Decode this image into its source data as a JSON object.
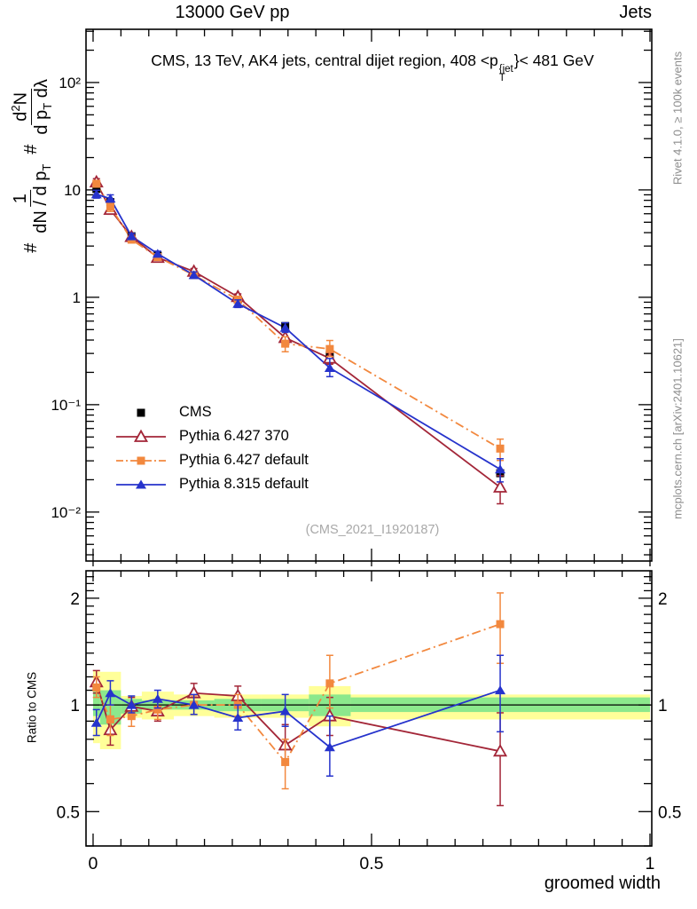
{
  "header": {
    "left": "13000 GeV pp",
    "right": "Jets"
  },
  "title": {
    "pre": "CMS, 13 TeV, AK4 jets, central dijet region, 408 <p",
    "sup": "{jet",
    "sub": "T",
    "post": "}< 481 GeV"
  },
  "ylabel": {
    "hash1": "#",
    "frac1_num": "1",
    "frac1_den_a": "dN / d p",
    "frac1_den_sub": "T",
    "hash2": "#",
    "frac2_num_a": "d",
    "frac2_num_sup": "2",
    "frac2_num_b": "N",
    "frac2_den_a": "d p",
    "frac2_den_sub": "T",
    "frac2_den_b": " dλ"
  },
  "ratio_ylabel": "Ratio to CMS",
  "watermark": "(CMS_2021_I1920187)",
  "credits": {
    "right_top": "Rivet 4.1.0, ≥ 100k events",
    "right_bottom": "mcplots.cern.ch [arXiv:2401.10621]"
  },
  "chart_data": {
    "type": "line",
    "title": "CMS, 13 TeV, AK4 jets, central dijet region, 408 < pT{jet} < 481 GeV",
    "xlabel": "groomed width",
    "ylabel": "# 1/(dN/dpT) # d2N/(dpT dlambda)",
    "ylabel_ratio": "Ratio to CMS",
    "xlim": [
      -0.0127,
      1.0032
    ],
    "ylim_main": [
      0.0035,
      313
    ],
    "ylog_main": true,
    "ylim_ratio": [
      0.4,
      2.39
    ],
    "ylog_ratio": true,
    "grid": false,
    "legend_position": "upper-left-inside",
    "x_edges": [
      0,
      0.0125,
      0.05,
      0.0875,
      0.145,
      0.2175,
      0.3025,
      0.3875,
      0.4625,
      1.0
    ],
    "x": [
      0.006,
      0.031,
      0.069,
      0.116,
      0.181,
      0.26,
      0.345,
      0.425,
      0.731
    ],
    "series": [
      {
        "name": "CMS",
        "color": "#000000",
        "marker": "square",
        "line": "none",
        "values": [
          10.2,
          7.7,
          3.7,
          2.44,
          1.61,
          0.95,
          0.54,
          0.29,
          0.023
        ]
      },
      {
        "name": "Pythia 6.427 370",
        "color": "#a32638",
        "marker": "triangle-open",
        "line": "solid",
        "values": [
          11.8,
          6.55,
          3.66,
          2.34,
          1.74,
          1.01,
          0.42,
          0.27,
          0.017
        ],
        "ratio": [
          1.16,
          0.85,
          0.99,
          0.96,
          1.08,
          1.06,
          0.77,
          0.93,
          0.74
        ],
        "ratio_lo": [
          1.08,
          0.77,
          0.93,
          0.9,
          1.02,
          0.99,
          0.68,
          0.82,
          0.52
        ],
        "ratio_hi": [
          1.25,
          0.93,
          1.05,
          1.02,
          1.15,
          1.13,
          0.88,
          1.05,
          0.95
        ]
      },
      {
        "name": "Pythia 6.427 default",
        "color": "#f2883e",
        "marker": "square",
        "line": "dashdot",
        "values": [
          11.4,
          7.0,
          3.44,
          2.37,
          1.61,
          0.95,
          0.37,
          0.33,
          0.039
        ],
        "ratio": [
          1.12,
          0.91,
          0.93,
          0.97,
          1.0,
          1.0,
          0.69,
          1.15,
          1.69
        ],
        "ratio_lo": [
          1.05,
          0.82,
          0.87,
          0.91,
          0.94,
          0.93,
          0.58,
          0.98,
          1.31
        ],
        "ratio_hi": [
          1.2,
          1.0,
          0.99,
          1.03,
          1.06,
          1.07,
          0.8,
          1.38,
          2.07
        ]
      },
      {
        "name": "Pythia 8.315 default",
        "color": "#2633cc",
        "marker": "triangle",
        "line": "solid",
        "values": [
          9.1,
          8.3,
          3.7,
          2.54,
          1.61,
          0.87,
          0.52,
          0.22,
          0.025
        ],
        "ratio": [
          0.89,
          1.08,
          1.0,
          1.04,
          1.0,
          0.92,
          0.96,
          0.76,
          1.1
        ],
        "ratio_lo": [
          0.82,
          1.0,
          0.95,
          0.98,
          0.94,
          0.85,
          0.87,
          0.63,
          0.84
        ],
        "ratio_hi": [
          0.97,
          1.17,
          1.06,
          1.1,
          1.07,
          1.0,
          1.07,
          0.93,
          1.38
        ]
      }
    ],
    "ratio_bands": {
      "yellow": {
        "color": "#ffff99",
        "lo": [
          0.78,
          0.75,
          0.92,
          0.91,
          0.93,
          0.92,
          0.92,
          0.87,
          0.91
        ],
        "hi": [
          1.25,
          1.24,
          1.06,
          1.09,
          1.07,
          1.07,
          1.07,
          1.13,
          1.07
        ]
      },
      "green": {
        "color": "#8ce88c",
        "lo": [
          0.93,
          0.88,
          0.945,
          0.97,
          0.97,
          0.96,
          0.96,
          0.93,
          0.955
        ],
        "hi": [
          1.11,
          1.1,
          1.04,
          1.03,
          1.03,
          1.04,
          1.04,
          1.07,
          1.05
        ]
      }
    },
    "yticks_main": [
      {
        "v": 100,
        "label": "10²"
      },
      {
        "v": 10,
        "label": "10"
      },
      {
        "v": 1,
        "label": "1"
      },
      {
        "v": 0.1,
        "label": "10⁻¹"
      },
      {
        "v": 0.01,
        "label": "10⁻²"
      }
    ],
    "yticks_ratio": [
      {
        "v": 2,
        "label": "2"
      },
      {
        "v": 1,
        "label": "1"
      },
      {
        "v": 0.5,
        "label": "0.5"
      }
    ],
    "xticks": [
      {
        "v": 0,
        "label": "0"
      },
      {
        "v": 0.5,
        "label": "0.5"
      },
      {
        "v": 1,
        "label": "1"
      }
    ]
  }
}
